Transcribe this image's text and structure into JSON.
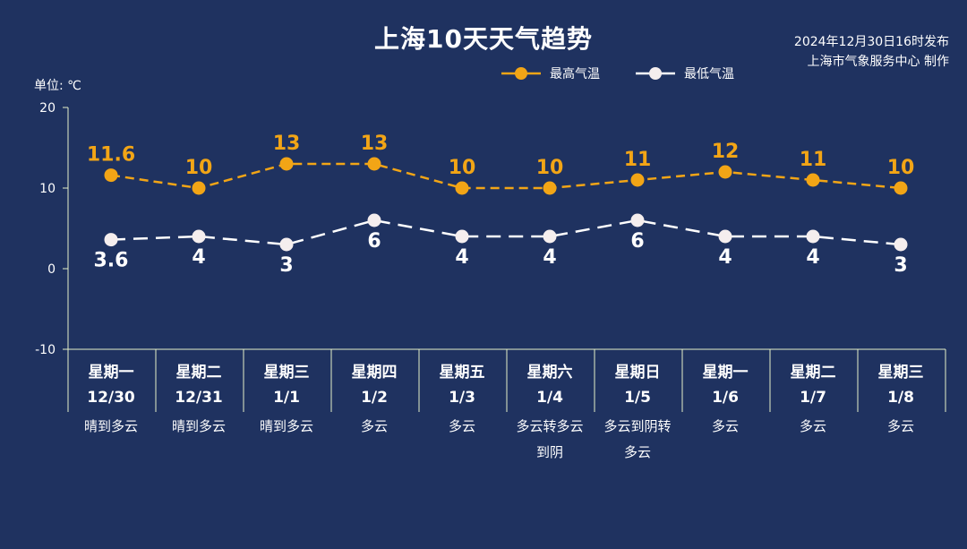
{
  "title": "上海10天天气趋势",
  "issued": [
    "2024年12月30日16时发布",
    "上海市气象服务中心 制作"
  ],
  "unit_label": "单位: ℃",
  "colors": {
    "background": "#1f3260",
    "high": "#f2a516",
    "low": "#ffffff",
    "axis": "#e6f0c8"
  },
  "chart_data": {
    "type": "line",
    "ylim": [
      -10,
      20
    ],
    "yticks": [
      -10,
      0,
      10,
      20
    ],
    "legend_position": "top-right",
    "categories": [
      {
        "weekday": "星期一",
        "date": "12/30",
        "weather": [
          "晴到多云"
        ]
      },
      {
        "weekday": "星期二",
        "date": "12/31",
        "weather": [
          "晴到多云"
        ]
      },
      {
        "weekday": "星期三",
        "date": "1/1",
        "weather": [
          "晴到多云"
        ]
      },
      {
        "weekday": "星期四",
        "date": "1/2",
        "weather": [
          "多云"
        ]
      },
      {
        "weekday": "星期五",
        "date": "1/3",
        "weather": [
          "多云"
        ]
      },
      {
        "weekday": "星期六",
        "date": "1/4",
        "weather": [
          "多云转多云",
          "到阴"
        ]
      },
      {
        "weekday": "星期日",
        "date": "1/5",
        "weather": [
          "多云到阴转",
          "多云"
        ]
      },
      {
        "weekday": "星期一",
        "date": "1/6",
        "weather": [
          "多云"
        ]
      },
      {
        "weekday": "星期二",
        "date": "1/7",
        "weather": [
          "多云"
        ]
      },
      {
        "weekday": "星期三",
        "date": "1/8",
        "weather": [
          "多云"
        ]
      }
    ],
    "series": [
      {
        "name": "最高气温",
        "values": [
          11.6,
          10,
          13,
          13,
          10,
          10,
          11,
          12,
          11,
          10
        ],
        "labels": [
          "11.6",
          "10",
          "13",
          "13",
          "10",
          "10",
          "11",
          "12",
          "11",
          "10"
        ]
      },
      {
        "name": "最低气温",
        "values": [
          3.6,
          4,
          3,
          6,
          4,
          4,
          6,
          4,
          4,
          3
        ],
        "labels": [
          "3.6",
          "4",
          "3",
          "6",
          "4",
          "4",
          "6",
          "4",
          "4",
          "3"
        ]
      }
    ]
  }
}
